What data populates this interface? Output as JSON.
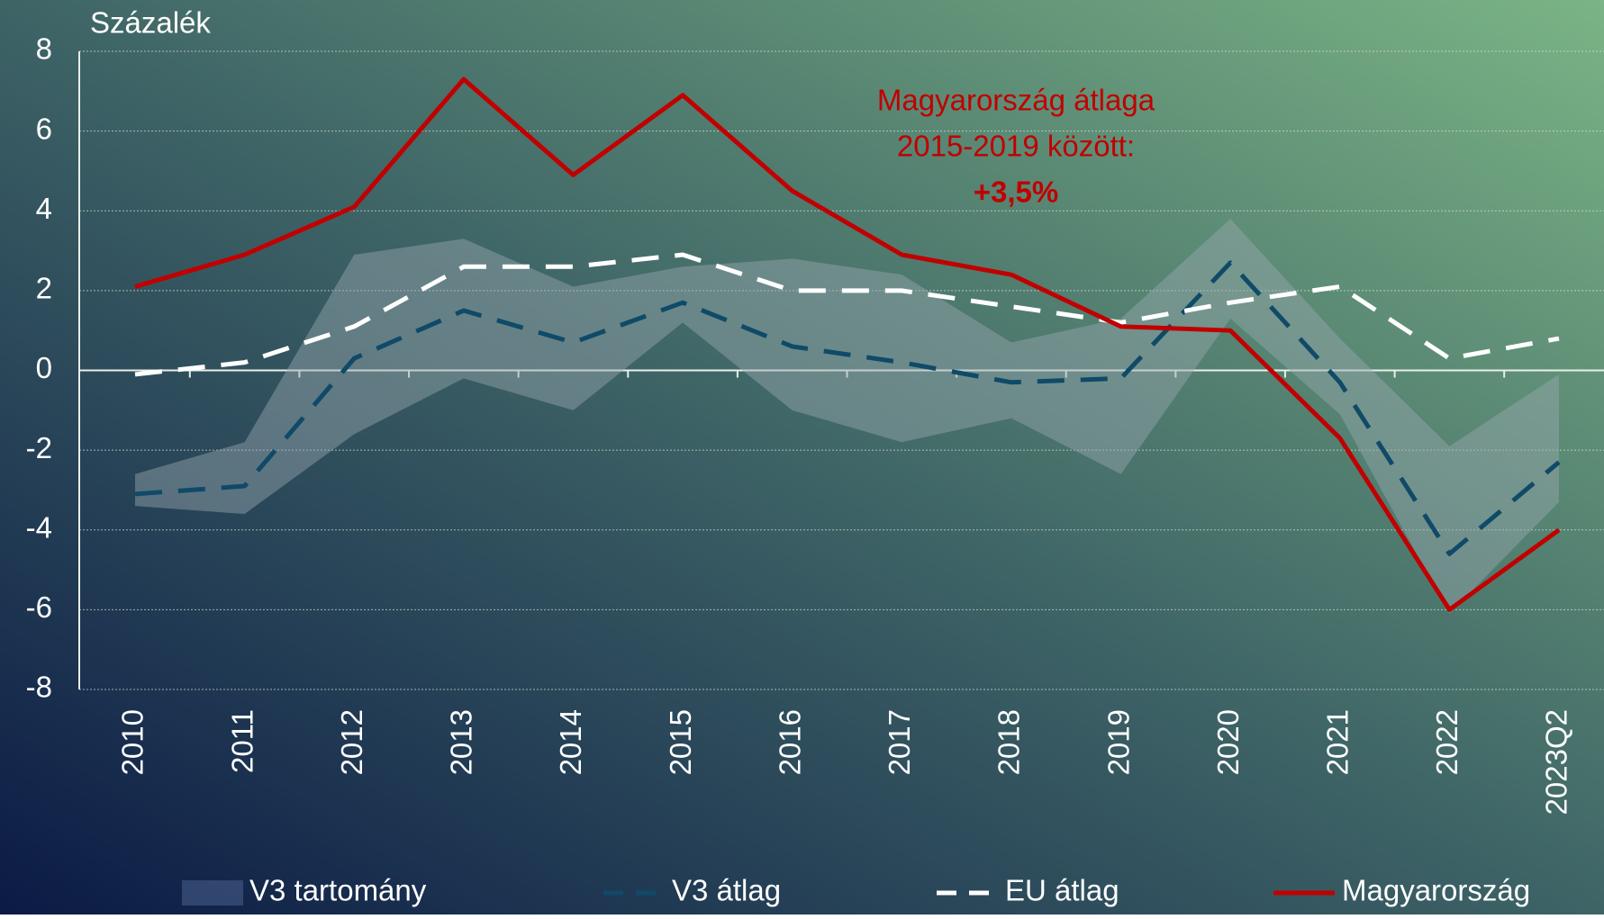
{
  "chart_data": {
    "type": "line",
    "y_label": "Százalék",
    "categories": [
      "2010",
      "2011",
      "2012",
      "2013",
      "2014",
      "2015",
      "2016",
      "2017",
      "2018",
      "2019",
      "2020",
      "2021",
      "2022",
      "2023Q2"
    ],
    "ylim": [
      -8,
      8
    ],
    "yticks": [
      -8,
      -6,
      -4,
      -2,
      0,
      2,
      4,
      6,
      8
    ],
    "grid": true,
    "band": {
      "name": "V3 tartomány",
      "color": "#9aa8b0",
      "low": [
        -3.4,
        -3.6,
        -1.6,
        -0.2,
        -1.0,
        1.2,
        -1.0,
        -1.8,
        -1.2,
        -2.6,
        1.3,
        -1.1,
        -6.1,
        -3.3
      ],
      "high": [
        -2.6,
        -1.8,
        2.9,
        3.3,
        2.1,
        2.6,
        2.8,
        2.4,
        0.7,
        1.3,
        3.8,
        0.8,
        -1.9,
        -0.1
      ]
    },
    "series": [
      {
        "name": "V3 átlag",
        "color": "#0f4a68",
        "dash": true,
        "values": [
          -3.1,
          -2.9,
          0.3,
          1.5,
          0.7,
          1.7,
          0.6,
          0.2,
          -0.3,
          -0.2,
          2.7,
          -0.3,
          -4.6,
          -2.3
        ]
      },
      {
        "name": "EU átlag",
        "color": "#ffffff",
        "dash": true,
        "values": [
          -0.1,
          0.2,
          1.1,
          2.6,
          2.6,
          2.9,
          2.0,
          2.0,
          1.6,
          1.2,
          1.7,
          2.1,
          0.3,
          0.8
        ]
      },
      {
        "name": "Magyarország",
        "color": "#c00000",
        "dash": false,
        "values": [
          2.1,
          2.9,
          4.1,
          7.3,
          4.9,
          6.9,
          4.5,
          2.9,
          2.4,
          1.1,
          1.0,
          -1.7,
          -6.0,
          -4.0
        ]
      }
    ],
    "annotation": {
      "lines": [
        "Magyarország átlaga",
        "2015-2019 között:"
      ],
      "value": "+3,5%",
      "color": "#c00000"
    }
  }
}
